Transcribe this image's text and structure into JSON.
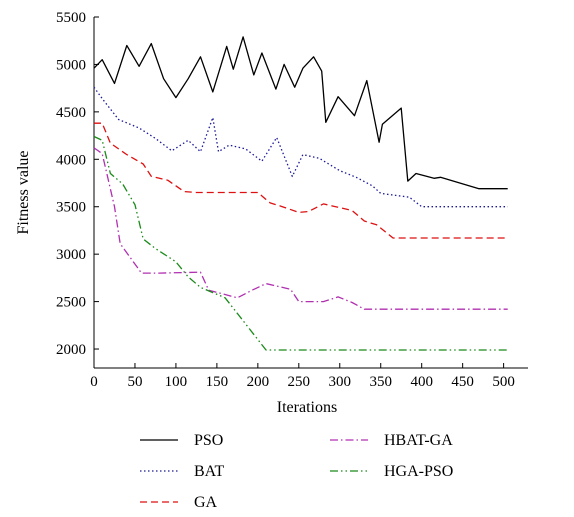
{
  "chart_data": {
    "type": "line",
    "xlabel": "Iterations",
    "ylabel": "Fitness value",
    "xlim": [
      0,
      520
    ],
    "ylim": [
      1800,
      5500
    ],
    "xticks": [
      0,
      50,
      100,
      150,
      200,
      250,
      300,
      350,
      400,
      450,
      500
    ],
    "yticks": [
      2000,
      2500,
      3000,
      3500,
      4000,
      4500,
      5000,
      5500
    ],
    "grid": false,
    "legend_position": "bottom",
    "series": [
      {
        "name": "PSO",
        "color": "#000000",
        "dash": "solid",
        "points": [
          [
            0,
            4960
          ],
          [
            10,
            5050
          ],
          [
            25,
            4800
          ],
          [
            40,
            5200
          ],
          [
            55,
            4980
          ],
          [
            70,
            5220
          ],
          [
            85,
            4850
          ],
          [
            100,
            4650
          ],
          [
            115,
            4850
          ],
          [
            130,
            5080
          ],
          [
            145,
            4710
          ],
          [
            162,
            5190
          ],
          [
            170,
            4950
          ],
          [
            182,
            5290
          ],
          [
            195,
            4890
          ],
          [
            205,
            5120
          ],
          [
            222,
            4740
          ],
          [
            232,
            5000
          ],
          [
            245,
            4760
          ],
          [
            255,
            4960
          ],
          [
            268,
            5080
          ],
          [
            278,
            4930
          ],
          [
            283,
            4390
          ],
          [
            298,
            4660
          ],
          [
            318,
            4460
          ],
          [
            333,
            4830
          ],
          [
            348,
            4180
          ],
          [
            352,
            4370
          ],
          [
            375,
            4540
          ],
          [
            383,
            3770
          ],
          [
            393,
            3850
          ],
          [
            415,
            3800
          ],
          [
            423,
            3810
          ],
          [
            470,
            3690
          ],
          [
            505,
            3690
          ]
        ]
      },
      {
        "name": "BAT",
        "color": "#1a1a99",
        "dash": "dotted",
        "points": [
          [
            0,
            4760
          ],
          [
            10,
            4640
          ],
          [
            30,
            4420
          ],
          [
            55,
            4330
          ],
          [
            75,
            4220
          ],
          [
            95,
            4090
          ],
          [
            115,
            4200
          ],
          [
            130,
            4080
          ],
          [
            145,
            4440
          ],
          [
            152,
            4080
          ],
          [
            165,
            4150
          ],
          [
            185,
            4110
          ],
          [
            205,
            3980
          ],
          [
            223,
            4230
          ],
          [
            242,
            3820
          ],
          [
            255,
            4050
          ],
          [
            275,
            4010
          ],
          [
            300,
            3880
          ],
          [
            320,
            3810
          ],
          [
            340,
            3720
          ],
          [
            350,
            3640
          ],
          [
            385,
            3600
          ],
          [
            400,
            3500
          ],
          [
            505,
            3500
          ]
        ]
      },
      {
        "name": "GA",
        "color": "#dd1111",
        "dash": "dashed",
        "points": [
          [
            0,
            4380
          ],
          [
            10,
            4380
          ],
          [
            20,
            4170
          ],
          [
            40,
            4050
          ],
          [
            60,
            3950
          ],
          [
            70,
            3820
          ],
          [
            90,
            3780
          ],
          [
            110,
            3660
          ],
          [
            125,
            3650
          ],
          [
            200,
            3650
          ],
          [
            215,
            3540
          ],
          [
            230,
            3500
          ],
          [
            250,
            3440
          ],
          [
            262,
            3450
          ],
          [
            280,
            3530
          ],
          [
            295,
            3500
          ],
          [
            315,
            3460
          ],
          [
            330,
            3350
          ],
          [
            345,
            3310
          ],
          [
            365,
            3170
          ],
          [
            505,
            3170
          ]
        ]
      },
      {
        "name": "HBAT-GA",
        "color": "#b030b0",
        "dash": "dashdot",
        "points": [
          [
            0,
            4120
          ],
          [
            10,
            4060
          ],
          [
            25,
            3500
          ],
          [
            32,
            3110
          ],
          [
            58,
            2800
          ],
          [
            80,
            2800
          ],
          [
            130,
            2810
          ],
          [
            140,
            2620
          ],
          [
            175,
            2540
          ],
          [
            193,
            2620
          ],
          [
            210,
            2690
          ],
          [
            240,
            2630
          ],
          [
            250,
            2500
          ],
          [
            280,
            2500
          ],
          [
            298,
            2550
          ],
          [
            315,
            2490
          ],
          [
            330,
            2420
          ],
          [
            505,
            2420
          ]
        ]
      },
      {
        "name": "HGA-PSO",
        "color": "#1a8a1a",
        "dash": "dashdotdot",
        "points": [
          [
            0,
            4240
          ],
          [
            10,
            4200
          ],
          [
            20,
            3850
          ],
          [
            35,
            3740
          ],
          [
            50,
            3520
          ],
          [
            60,
            3160
          ],
          [
            75,
            3060
          ],
          [
            100,
            2920
          ],
          [
            115,
            2760
          ],
          [
            130,
            2650
          ],
          [
            160,
            2540
          ],
          [
            180,
            2320
          ],
          [
            210,
            1990
          ],
          [
            505,
            1990
          ]
        ]
      }
    ]
  }
}
